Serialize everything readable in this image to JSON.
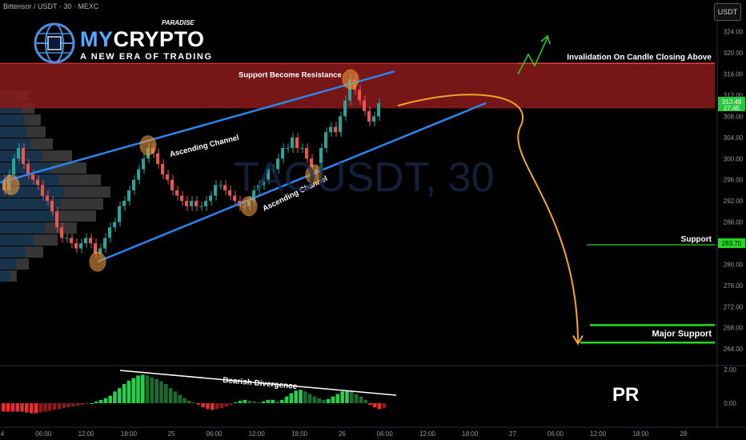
{
  "header": {
    "symbol_line": "Bittensor / USDT · 30 · MEXC",
    "currency_button": "USDT"
  },
  "logo": {
    "brand_part1": "MY",
    "brand_part2": "CRYPTO",
    "tag_top": "PARADISE",
    "tagline": "A NEW ERA OF TRADING"
  },
  "watermark": "TAOUSDT, 30",
  "corner_badge": "PR",
  "colors": {
    "up": "#26a69a",
    "down": "#ef5350",
    "resistance_zone": "#8b1a1a",
    "channel": "#2a86f0",
    "projection": "#f5a623",
    "support": "#23d923",
    "marker": "#e8953b",
    "price_badge": "#23c93a",
    "text": "#ffffff"
  },
  "chart_data": [
    {
      "type": "candlestick",
      "title": "",
      "y_axis": {
        "ylim": [
          261,
          330
        ],
        "ticks": [
          264,
          268,
          272,
          276,
          280,
          284,
          288,
          292,
          296,
          300,
          304,
          308,
          312,
          316,
          320,
          324
        ]
      },
      "x_axis": {
        "labels": [
          "4",
          "06:00",
          "12:00",
          "18:00",
          "25",
          "06:00",
          "12:00",
          "18:00",
          "26",
          "06:00",
          "12:00",
          "18:00",
          "27",
          "06:00",
          "12:00",
          "18:00",
          "28"
        ]
      },
      "last_price": "310.48",
      "countdown": "27:45",
      "support_price": "283.70",
      "price_path": [
        [
          0,
          296
        ],
        [
          6,
          294
        ],
        [
          12,
          297
        ],
        [
          18,
          300
        ],
        [
          24,
          302
        ],
        [
          30,
          299
        ],
        [
          36,
          297
        ],
        [
          42,
          296
        ],
        [
          48,
          295
        ],
        [
          54,
          293
        ],
        [
          60,
          292
        ],
        [
          66,
          290
        ],
        [
          72,
          287
        ],
        [
          78,
          285
        ],
        [
          84,
          285
        ],
        [
          90,
          284
        ],
        [
          96,
          283
        ],
        [
          102,
          284
        ],
        [
          108,
          285
        ],
        [
          114,
          284
        ],
        [
          120,
          282
        ],
        [
          126,
          283
        ],
        [
          132,
          285
        ],
        [
          138,
          287
        ],
        [
          144,
          288
        ],
        [
          150,
          291
        ],
        [
          156,
          292
        ],
        [
          162,
          294
        ],
        [
          168,
          296
        ],
        [
          174,
          298
        ],
        [
          180,
          300
        ],
        [
          186,
          302
        ],
        [
          192,
          301
        ],
        [
          198,
          299
        ],
        [
          204,
          297
        ],
        [
          210,
          296
        ],
        [
          216,
          294
        ],
        [
          222,
          293
        ],
        [
          228,
          292
        ],
        [
          234,
          291
        ],
        [
          240,
          292
        ],
        [
          246,
          291
        ],
        [
          252,
          291
        ],
        [
          258,
          292
        ],
        [
          264,
          293
        ],
        [
          270,
          295
        ],
        [
          276,
          295
        ],
        [
          282,
          294
        ],
        [
          288,
          293
        ],
        [
          294,
          292
        ],
        [
          300,
          291
        ],
        [
          306,
          291
        ],
        [
          312,
          292
        ],
        [
          318,
          294
        ],
        [
          324,
          295
        ],
        [
          330,
          296
        ],
        [
          336,
          298
        ],
        [
          342,
          298
        ],
        [
          348,
          300
        ],
        [
          354,
          302
        ],
        [
          360,
          302
        ],
        [
          366,
          304
        ],
        [
          372,
          302
        ],
        [
          378,
          302
        ],
        [
          384,
          300
        ],
        [
          390,
          297
        ],
        [
          396,
          298
        ],
        [
          402,
          302
        ],
        [
          408,
          305
        ],
        [
          414,
          306
        ],
        [
          420,
          305
        ],
        [
          426,
          308
        ],
        [
          432,
          311
        ],
        [
          438,
          315
        ],
        [
          444,
          313
        ],
        [
          450,
          311
        ],
        [
          456,
          309
        ],
        [
          462,
          307
        ],
        [
          468,
          308
        ],
        [
          474,
          310.5
        ]
      ],
      "zones": [
        {
          "label": "",
          "from": 309.5,
          "to": 318
        }
      ],
      "lines": [
        {
          "label": "Invalidation On Candle Closing Above",
          "value": 318
        },
        {
          "label": "Support",
          "value": 283.7
        },
        {
          "label": "Major Support",
          "value": 268.5
        },
        {
          "label": "",
          "value": 265.2
        }
      ],
      "channel": {
        "upper": [
          [
            0,
            295.5
          ],
          [
            493,
            316.5
          ]
        ],
        "lower": [
          [
            122,
            280.5
          ],
          [
            607,
            310.5
          ]
        ]
      },
      "annotations": [
        "Support Become Resistance",
        "Ascending Channel",
        "Ascending Channel"
      ],
      "markers": [
        {
          "x": 14,
          "y": 295
        },
        {
          "x": 185,
          "y": 302.5
        },
        {
          "x": 311,
          "y": 291
        },
        {
          "x": 392,
          "y": 297
        },
        {
          "x": 438,
          "y": 315
        },
        {
          "x": 122,
          "y": 280.5
        }
      ],
      "projection": [
        [
          497,
          310
        ],
        [
          590,
          311
        ],
        [
          650,
          306
        ],
        [
          700,
          290
        ],
        [
          722,
          265
        ]
      ]
    },
    {
      "type": "histogram",
      "title": "",
      "ylim": [
        -1.1,
        2.2
      ],
      "y_ticks": [
        "2.00",
        "0.00"
      ],
      "annotation": "Bearish Divergence",
      "values": [
        -0.5,
        -0.5,
        -0.5,
        -0.5,
        -0.5,
        -0.55,
        -0.6,
        -0.6,
        -0.55,
        -0.5,
        -0.45,
        -0.4,
        -0.35,
        -0.3,
        -0.25,
        -0.2,
        -0.15,
        -0.1,
        -0.05,
        0.0,
        0.1,
        0.2,
        0.3,
        0.45,
        0.7,
        0.9,
        1.15,
        1.35,
        1.5,
        1.65,
        1.7,
        1.65,
        1.55,
        1.45,
        1.3,
        1.15,
        0.9,
        0.7,
        0.5,
        0.3,
        0.15,
        0.05,
        -0.1,
        -0.25,
        -0.35,
        -0.4,
        -0.35,
        -0.3,
        -0.2,
        -0.1,
        0.05,
        0.15,
        0.2,
        0.15,
        0.1,
        0.05,
        0.1,
        0.2,
        0.2,
        0.1,
        0.2,
        0.4,
        0.6,
        0.75,
        0.8,
        0.7,
        0.55,
        0.4,
        0.3,
        0.2,
        0.25,
        0.4,
        0.55,
        0.7,
        0.75,
        0.7,
        0.55,
        0.4,
        0.2,
        -0.1,
        -0.25,
        -0.35,
        -0.3
      ]
    }
  ]
}
